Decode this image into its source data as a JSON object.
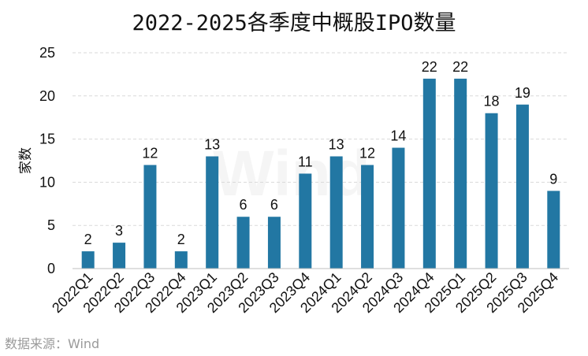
{
  "chart_data": {
    "type": "bar",
    "title": "2022-2025各季度中概股IPO数量",
    "xlabel": "",
    "ylabel": "家数",
    "ylim": [
      0,
      25
    ],
    "yticks": [
      0,
      5,
      10,
      15,
      20,
      25
    ],
    "grid": true,
    "categories": [
      "2022Q1",
      "2022Q2",
      "2022Q3",
      "2022Q4",
      "2023Q1",
      "2023Q2",
      "2023Q3",
      "2023Q4",
      "2024Q1",
      "2024Q2",
      "2024Q3",
      "2024Q4",
      "2025Q1",
      "2025Q2",
      "2025Q3",
      "2025Q4"
    ],
    "series": [
      {
        "name": "家数",
        "values": [
          2,
          3,
          12,
          2,
          13,
          6,
          6,
          11,
          13,
          12,
          14,
          22,
          22,
          18,
          19,
          9
        ]
      }
    ],
    "data_labels": true
  },
  "colors": {
    "bar": "#2277a3",
    "grid": "#d9d9d9",
    "axis": "#bfbfbf"
  },
  "watermark": "Wind",
  "source": "数据来源：Wind"
}
